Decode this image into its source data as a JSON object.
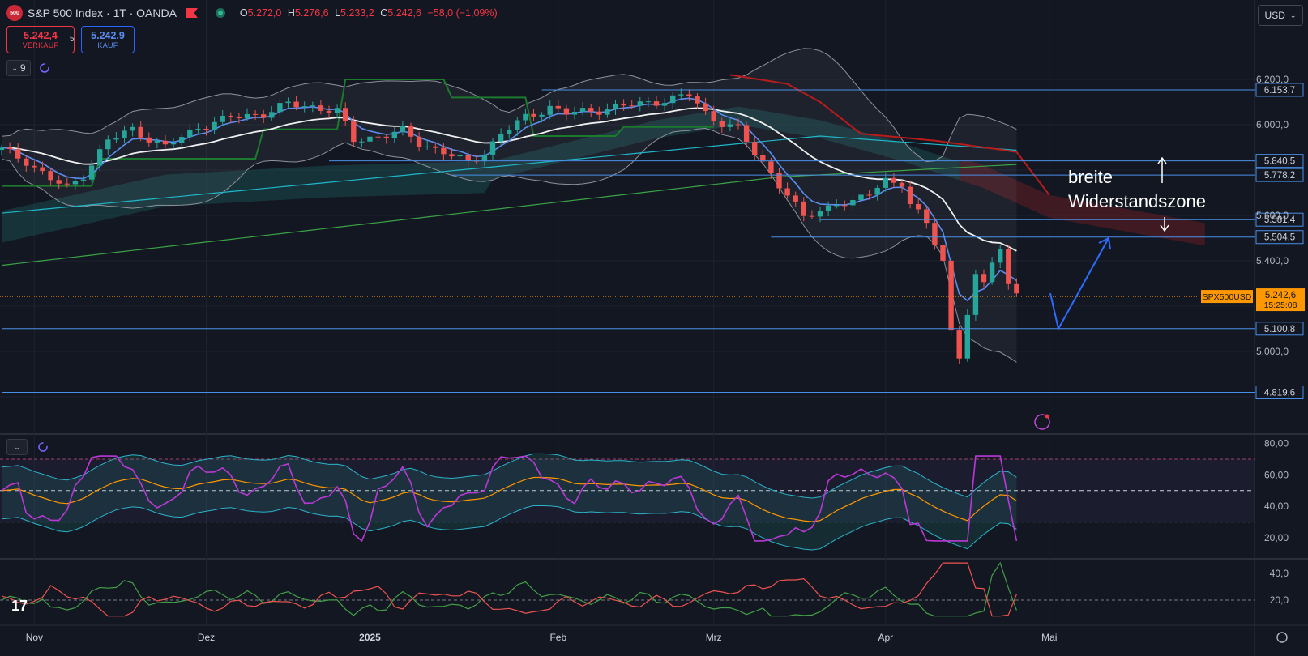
{
  "header": {
    "logo_text": "500",
    "title": "S&P 500 Index · 1T · OANDA",
    "ohlc": [
      {
        "k": "O",
        "v": "5.272,0"
      },
      {
        "k": "H",
        "v": "5.276,6"
      },
      {
        "k": "L",
        "v": "5.233,2"
      },
      {
        "k": "C",
        "v": "5.242,6"
      },
      {
        "k": "",
        "v": "−58,0 (−1,09%)"
      }
    ]
  },
  "trade": {
    "sell_price": "5.242,4",
    "sell_label": "VERKAUF",
    "spread": "5",
    "buy_price": "5.242,9",
    "buy_label": "KAUF"
  },
  "indicator_toggle": "9",
  "currency": "USD",
  "annotation": {
    "line1": "breite",
    "line2": "Widerstandszone"
  },
  "colors": {
    "up": "#26a69a",
    "down": "#ef5350",
    "level": "#4a8fe7",
    "accent": "#ff9800"
  },
  "chart_data": {
    "type": "candlestick",
    "y_axis": {
      "ticks": [
        {
          "v": 6200,
          "label": "6.200,0"
        },
        {
          "v": 6000,
          "label": "6.000,0"
        },
        {
          "v": 5600,
          "label": "5.600,0"
        },
        {
          "v": 5400,
          "label": "5.400,0"
        },
        {
          "v": 5000,
          "label": "5.000,0"
        }
      ],
      "ylim": [
        4750,
        6400
      ]
    },
    "x_axis": {
      "ticks": [
        {
          "label": "Nov",
          "i": 4
        },
        {
          "label": "Dez",
          "i": 25
        },
        {
          "label": "2025",
          "i": 45,
          "bold": true
        },
        {
          "label": "Feb",
          "i": 68
        },
        {
          "label": "Mrz",
          "i": 87
        },
        {
          "label": "Apr",
          "i": 108
        },
        {
          "label": "Mai",
          "i": 128
        }
      ]
    },
    "levels": [
      {
        "value": 6153.7,
        "label": "6.153,7",
        "start_i": 66
      },
      {
        "value": 5840.5,
        "label": "5.840,5",
        "start_i": 40
      },
      {
        "value": 5778.2,
        "label": "5.778,2",
        "start_i": 55
      },
      {
        "value": 5581.4,
        "label": "5.581,4",
        "start_i": 100
      },
      {
        "value": 5504.5,
        "label": "5.504,5",
        "start_i": 94
      },
      {
        "value": 5100.8,
        "label": "5.100,8",
        "start_i": 0
      },
      {
        "value": 4819.6,
        "label": "4.819,6",
        "start_i": 0
      }
    ],
    "current_price": {
      "value": 5242.6,
      "label": "5.242,6",
      "symbol": "SPX500USD",
      "countdown": "15:25:08"
    },
    "forecast_arrow": [
      {
        "i": 124,
        "v": 5100
      },
      {
        "i": 131,
        "v": 5500
      }
    ],
    "rsi": {
      "ticks": [
        {
          "v": 80,
          "label": "80,00"
        },
        {
          "v": 60,
          "label": "60,00"
        },
        {
          "v": 40,
          "label": "40,00"
        },
        {
          "v": 20,
          "label": "20,00"
        }
      ],
      "upper": 70,
      "middle": 50,
      "lower": 30,
      "ylim": [
        10,
        86
      ]
    },
    "dmi": {
      "ticks": [
        {
          "v": 40,
          "label": "40,0"
        },
        {
          "v": 20,
          "label": "20,0"
        }
      ],
      "ylim": [
        0,
        50
      ]
    }
  }
}
